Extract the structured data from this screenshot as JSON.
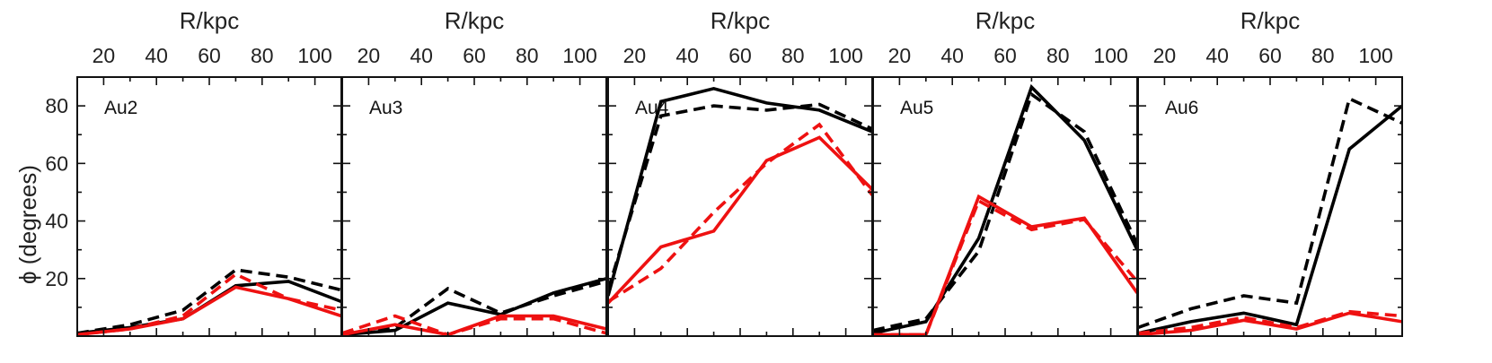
{
  "chart_data": {
    "type": "line",
    "xlabel": "R/kpc",
    "ylabel": "ϕ (degrees)",
    "xlim": [
      10,
      110
    ],
    "ylim": [
      0,
      90
    ],
    "xticks": [
      20,
      40,
      60,
      80,
      100
    ],
    "yticks": [
      20,
      40,
      60,
      80
    ],
    "colors": {
      "black": "#000000",
      "red": "#ee1111"
    },
    "panels": [
      {
        "label": "Au2",
        "series": [
          {
            "name": "black-solid",
            "color": "black",
            "style": "solid",
            "x": [
              10,
              30,
              50,
              70,
              90,
              110
            ],
            "y": [
              1,
              3,
              6,
              17.5,
              19,
              12
            ]
          },
          {
            "name": "black-dashed",
            "color": "black",
            "style": "dashed",
            "x": [
              10,
              30,
              50,
              70,
              90,
              110
            ],
            "y": [
              1,
              4,
              9,
              23,
              20.5,
              16
            ]
          },
          {
            "name": "red-solid",
            "color": "red",
            "style": "solid",
            "x": [
              10,
              30,
              50,
              70,
              90,
              110
            ],
            "y": [
              0.5,
              2.5,
              6,
              17,
              13,
              7
            ]
          },
          {
            "name": "red-dashed",
            "color": "red",
            "style": "dashed",
            "x": [
              10,
              30,
              50,
              70,
              90,
              110
            ],
            "y": [
              0.5,
              2.5,
              7,
              21.5,
              13,
              9
            ]
          }
        ]
      },
      {
        "label": "Au3",
        "series": [
          {
            "name": "black-solid",
            "color": "black",
            "style": "solid",
            "x": [
              10,
              30,
              50,
              70,
              90,
              110
            ],
            "y": [
              0.5,
              2,
              11.5,
              7.5,
              15,
              20
            ]
          },
          {
            "name": "black-dashed",
            "color": "black",
            "style": "dashed",
            "x": [
              10,
              30,
              50,
              70,
              90,
              110
            ],
            "y": [
              1,
              3,
              16.5,
              8,
              14,
              19
            ]
          },
          {
            "name": "red-solid",
            "color": "red",
            "style": "solid",
            "x": [
              10,
              30,
              50,
              70,
              90,
              110
            ],
            "y": [
              0.5,
              4,
              0.5,
              7,
              7,
              2.5
            ]
          },
          {
            "name": "red-dashed",
            "color": "red",
            "style": "dashed",
            "x": [
              10,
              30,
              50,
              70,
              90,
              110
            ],
            "y": [
              1,
              7,
              0.5,
              6,
              6,
              1
            ]
          }
        ]
      },
      {
        "label": "Au4",
        "series": [
          {
            "name": "black-solid",
            "color": "black",
            "style": "solid",
            "x": [
              10,
              30,
              50,
              70,
              90,
              110
            ],
            "y": [
              14,
              81.5,
              86,
              81,
              78.5,
              71
            ]
          },
          {
            "name": "black-dashed",
            "color": "black",
            "style": "dashed",
            "x": [
              10,
              30,
              50,
              70,
              90,
              110
            ],
            "y": [
              16,
              76.5,
              80,
              78.5,
              80.5,
              72
            ]
          },
          {
            "name": "red-solid",
            "color": "red",
            "style": "solid",
            "x": [
              10,
              30,
              50,
              70,
              90,
              110
            ],
            "y": [
              11.5,
              31,
              36.5,
              61,
              69,
              51
            ]
          },
          {
            "name": "red-dashed",
            "color": "red",
            "style": "dashed",
            "x": [
              10,
              30,
              50,
              70,
              90,
              110
            ],
            "y": [
              12,
              23.5,
              43,
              60,
              73.5,
              49
            ]
          }
        ]
      },
      {
        "label": "Au5",
        "series": [
          {
            "name": "black-solid",
            "color": "black",
            "style": "solid",
            "x": [
              10,
              30,
              50,
              70,
              90,
              110
            ],
            "y": [
              1,
              5,
              34,
              86.5,
              68,
              30
            ]
          },
          {
            "name": "black-dashed",
            "color": "black",
            "style": "dashed",
            "x": [
              10,
              30,
              50,
              70,
              90,
              110
            ],
            "y": [
              2,
              6,
              29.5,
              84,
              71,
              32
            ]
          },
          {
            "name": "red-solid",
            "color": "red",
            "style": "solid",
            "x": [
              10,
              30,
              50,
              70,
              90,
              110
            ],
            "y": [
              0.5,
              0.5,
              48.5,
              38,
              41,
              15
            ]
          },
          {
            "name": "red-dashed",
            "color": "red",
            "style": "dashed",
            "x": [
              10,
              30,
              50,
              70,
              90,
              110
            ],
            "y": [
              0.5,
              0.5,
              47,
              37,
              40.5,
              19
            ]
          }
        ]
      },
      {
        "label": "Au6",
        "series": [
          {
            "name": "black-solid",
            "color": "black",
            "style": "solid",
            "x": [
              10,
              30,
              50,
              70,
              90,
              110
            ],
            "y": [
              1,
              5,
              8,
              4,
              65,
              80
            ]
          },
          {
            "name": "black-dashed",
            "color": "black",
            "style": "dashed",
            "x": [
              10,
              30,
              50,
              70,
              90,
              110
            ],
            "y": [
              3,
              9.5,
              14,
              11.5,
              82.5,
              74
            ]
          },
          {
            "name": "red-solid",
            "color": "red",
            "style": "solid",
            "x": [
              10,
              30,
              50,
              70,
              90,
              110
            ],
            "y": [
              0.5,
              2,
              5.5,
              2.5,
              8,
              5
            ]
          },
          {
            "name": "red-dashed",
            "color": "red",
            "style": "dashed",
            "x": [
              10,
              30,
              50,
              70,
              90,
              110
            ],
            "y": [
              1,
              3,
              6.5,
              3,
              8.5,
              7
            ]
          }
        ]
      }
    ]
  }
}
